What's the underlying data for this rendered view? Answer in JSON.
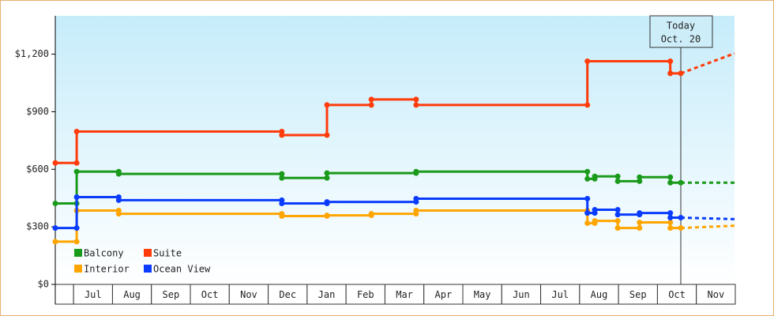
{
  "chart_data": {
    "type": "step-line",
    "categories": [
      null,
      "Jul",
      "Aug",
      "Sep",
      "Oct",
      "Nov",
      "Dec",
      "Jan",
      "Feb",
      "Mar",
      "Apr",
      "May",
      "Jun",
      "Jul",
      "Aug",
      "Sep",
      "Oct",
      "Nov"
    ],
    "xlim": [
      -0.47,
      16.98
    ],
    "ylim": [
      0,
      1400
    ],
    "yticks": [
      {
        "value": 0,
        "label": "$0"
      },
      {
        "value": 300,
        "label": "$300"
      },
      {
        "value": 600,
        "label": "$600"
      },
      {
        "value": 900,
        "label": "$900"
      },
      {
        "value": 1200,
        "label": "$1,200"
      }
    ],
    "legend": "bottom-left",
    "today": {
      "x": 15.6,
      "label": [
        "Today",
        "Oct. 20"
      ]
    },
    "series": [
      {
        "name": "Balcony",
        "color": "#1a9a1a",
        "x": [
          -0.47,
          0.08,
          0.08,
          1.16,
          1.16,
          5.35,
          5.35,
          6.51,
          6.51,
          8.8,
          8.8,
          13.2,
          13.2,
          13.39,
          13.39,
          13.98,
          13.98,
          14.54,
          14.54,
          15.33,
          15.33,
          15.6
        ],
        "values": [
          422,
          422,
          588,
          588,
          576,
          576,
          555,
          555,
          580,
          580,
          588,
          588,
          550,
          550,
          563,
          563,
          538,
          538,
          559,
          559,
          530,
          530
        ],
        "projection": {
          "x": [
            15.6,
            16.98
          ],
          "values": [
            530,
            530
          ]
        }
      },
      {
        "name": "Suite",
        "color": "#ff3c0a",
        "x": [
          -0.47,
          0.08,
          0.08,
          5.35,
          5.35,
          6.51,
          6.51,
          7.65,
          7.65,
          8.8,
          8.8,
          13.2,
          13.2,
          15.33,
          15.33,
          15.6
        ],
        "values": [
          633,
          633,
          797,
          797,
          778,
          778,
          935,
          935,
          964,
          964,
          935,
          935,
          1163,
          1163,
          1100,
          1100
        ],
        "projection": {
          "x": [
            15.6,
            16.98
          ],
          "values": [
            1100,
            1204
          ]
        }
      },
      {
        "name": "Interior",
        "color": "#ffa500",
        "x": [
          -0.47,
          0.08,
          0.08,
          1.16,
          1.16,
          5.35,
          5.35,
          6.51,
          6.51,
          7.65,
          7.65,
          8.8,
          8.8,
          13.2,
          13.2,
          13.39,
          13.39,
          13.98,
          13.98,
          14.54,
          14.54,
          15.33,
          15.33,
          15.6
        ],
        "values": [
          223,
          223,
          385,
          385,
          368,
          368,
          356,
          356,
          360,
          360,
          368,
          368,
          385,
          385,
          319,
          319,
          331,
          331,
          294,
          294,
          323,
          323,
          294,
          294
        ],
        "projection": {
          "x": [
            15.6,
            16.98
          ],
          "values": [
            294,
            306
          ]
        }
      },
      {
        "name": "Ocean View",
        "color": "#0a3cff",
        "x": [
          -0.47,
          0.08,
          0.08,
          1.16,
          1.16,
          5.35,
          5.35,
          6.51,
          6.51,
          8.8,
          8.8,
          13.2,
          13.2,
          13.39,
          13.39,
          13.98,
          13.98,
          14.54,
          14.54,
          15.33,
          15.33,
          15.6
        ],
        "values": [
          294,
          294,
          455,
          455,
          439,
          439,
          422,
          422,
          430,
          430,
          447,
          447,
          372,
          372,
          389,
          389,
          364,
          364,
          372,
          372,
          348,
          348
        ],
        "projection": {
          "x": [
            15.6,
            16.98
          ],
          "values": [
            348,
            340
          ]
        }
      }
    ]
  }
}
